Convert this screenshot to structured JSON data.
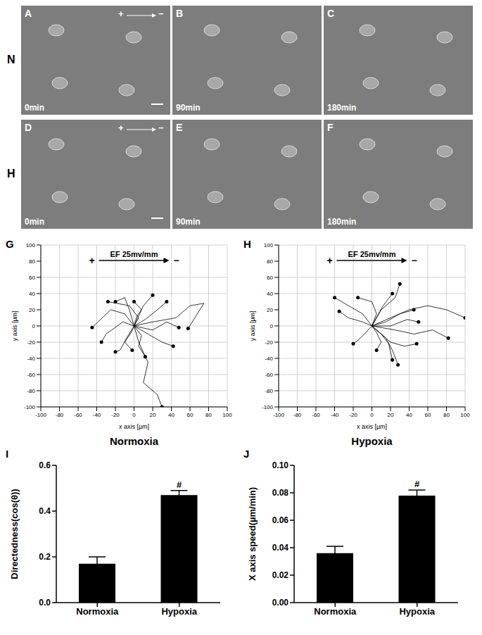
{
  "image_panels": {
    "field_plus": "+",
    "field_minus": "−",
    "rows": [
      {
        "label": "N",
        "panels": [
          {
            "label": "A",
            "time": "0min",
            "field": true
          },
          {
            "label": "B",
            "time": "90min",
            "field": false
          },
          {
            "label": "C",
            "time": "180min",
            "field": false
          }
        ]
      },
      {
        "label": "H",
        "panels": [
          {
            "label": "D",
            "time": "0min",
            "field": true
          },
          {
            "label": "E",
            "time": "90min",
            "field": false
          },
          {
            "label": "F",
            "time": "180min",
            "field": false
          }
        ]
      }
    ]
  },
  "chart_data": [
    {
      "type": "line",
      "panel_label": "G",
      "title": "Normoxia",
      "x_label": "x axis [µm]",
      "y_label": "y axis [µm]",
      "annotation": "EF 25mv/mm",
      "field_plus": "+",
      "field_minus": "−",
      "xlim": [
        -100,
        100
      ],
      "ylim": [
        -100,
        100
      ],
      "xticks": [
        -100,
        -80,
        -60,
        -40,
        -20,
        0,
        20,
        40,
        60,
        80,
        100
      ],
      "yticks": [
        -100,
        -80,
        -60,
        -40,
        -20,
        0,
        20,
        40,
        60,
        80,
        100
      ],
      "grid": true,
      "marker": "circle",
      "color": "#000000",
      "series": [
        {
          "x": [
            0,
            5,
            15,
            10,
            25,
            30
          ],
          "values": [
            0,
            -20,
            -45,
            -70,
            -85,
            -100
          ]
        },
        {
          "x": [
            0,
            20,
            45,
            60,
            75,
            58
          ],
          "values": [
            0,
            5,
            10,
            25,
            28,
            -3
          ]
        },
        {
          "x": [
            0,
            -10,
            -25,
            -45
          ],
          "values": [
            0,
            15,
            20,
            -2
          ]
        },
        {
          "x": [
            0,
            -5,
            -10,
            -20
          ],
          "values": [
            0,
            20,
            35,
            30
          ]
        },
        {
          "x": [
            0,
            10,
            20
          ],
          "values": [
            0,
            25,
            38
          ]
        },
        {
          "x": [
            0,
            15,
            30,
            42
          ],
          "values": [
            0,
            -10,
            -20,
            -25
          ]
        },
        {
          "x": [
            0,
            -8,
            -15,
            -20
          ],
          "values": [
            0,
            -15,
            -30,
            -32
          ]
        },
        {
          "x": [
            0,
            5,
            -5,
            -28
          ],
          "values": [
            0,
            10,
            25,
            30
          ]
        },
        {
          "x": [
            0,
            20,
            35,
            48
          ],
          "values": [
            0,
            -5,
            5,
            -2
          ]
        },
        {
          "x": [
            0,
            -12,
            -30,
            -35
          ],
          "values": [
            0,
            5,
            -10,
            -20
          ]
        },
        {
          "x": [
            0,
            8,
            5,
            12
          ],
          "values": [
            0,
            -12,
            -25,
            -38
          ]
        },
        {
          "x": [
            0,
            12,
            25,
            35
          ],
          "values": [
            0,
            8,
            20,
            30
          ]
        },
        {
          "x": [
            0,
            -3,
            -10,
            -2
          ],
          "values": [
            0,
            -8,
            -20,
            -30
          ]
        },
        {
          "x": [
            0,
            3,
            8,
            0
          ],
          "values": [
            0,
            12,
            20,
            30
          ]
        }
      ]
    },
    {
      "type": "line",
      "panel_label": "H",
      "title": "Hypoxia",
      "x_label": "x axis [µm]",
      "y_label": "y axis [µm]",
      "annotation": "EF 25mv/mm",
      "field_plus": "+",
      "field_minus": "−",
      "xlim": [
        -100,
        100
      ],
      "ylim": [
        -100,
        100
      ],
      "xticks": [
        -100,
        -80,
        -60,
        -40,
        -20,
        0,
        20,
        40,
        60,
        80,
        100
      ],
      "yticks": [
        -100,
        -80,
        -60,
        -40,
        -20,
        0,
        20,
        40,
        60,
        80,
        100
      ],
      "grid": true,
      "marker": "circle",
      "color": "#000000",
      "series": [
        {
          "x": [
            0,
            20,
            40,
            60,
            80,
            100
          ],
          "values": [
            0,
            10,
            20,
            25,
            20,
            10
          ]
        },
        {
          "x": [
            0,
            -10,
            -25,
            -40
          ],
          "values": [
            0,
            15,
            25,
            35
          ]
        },
        {
          "x": [
            0,
            10,
            25,
            30
          ],
          "values": [
            0,
            20,
            35,
            52
          ]
        },
        {
          "x": [
            0,
            15,
            22,
            28
          ],
          "values": [
            0,
            -15,
            -30,
            -48
          ]
        },
        {
          "x": [
            0,
            25,
            45,
            65,
            82
          ],
          "values": [
            0,
            -5,
            -10,
            -5,
            -15
          ]
        },
        {
          "x": [
            0,
            20,
            35,
            48
          ],
          "values": [
            0,
            -20,
            -25,
            -22
          ]
        },
        {
          "x": [
            0,
            5,
            0,
            -15
          ],
          "values": [
            0,
            15,
            30,
            35
          ]
        },
        {
          "x": [
            0,
            15,
            30,
            45
          ],
          "values": [
            0,
            5,
            15,
            20
          ]
        },
        {
          "x": [
            0,
            -8,
            -15,
            -20
          ],
          "values": [
            0,
            -10,
            -18,
            -22
          ]
        },
        {
          "x": [
            0,
            10,
            18,
            22
          ],
          "values": [
            0,
            -10,
            -22,
            -42
          ]
        },
        {
          "x": [
            0,
            12,
            22
          ],
          "values": [
            0,
            25,
            40
          ]
        },
        {
          "x": [
            0,
            20,
            38,
            50
          ],
          "values": [
            0,
            0,
            8,
            5
          ]
        },
        {
          "x": [
            0,
            5,
            10,
            5
          ],
          "values": [
            0,
            -8,
            -20,
            -30
          ]
        },
        {
          "x": [
            0,
            -10,
            -25,
            -35
          ],
          "values": [
            0,
            5,
            10,
            18
          ]
        }
      ]
    },
    {
      "type": "bar",
      "panel_label": "I",
      "y_label": "Directedness(cos(θ))",
      "categories": [
        "Normoxia",
        "Hypoxia"
      ],
      "values": [
        0.17,
        0.47
      ],
      "errors": [
        0.03,
        0.02
      ],
      "color": "#000000",
      "ylim": [
        0,
        0.6
      ],
      "yticks": [
        {
          "value": 0,
          "label": "0.0"
        },
        0.2,
        0.4,
        0.6
      ],
      "annotations": [
        {
          "category": "Hypoxia",
          "text": "#"
        }
      ]
    },
    {
      "type": "bar",
      "panel_label": "J",
      "y_label": "X axis speed(µm/min)",
      "categories": [
        "Normoxia",
        "Hypoxia"
      ],
      "values": [
        0.036,
        0.078
      ],
      "errors": [
        0.005,
        0.004
      ],
      "color": "#000000",
      "ylim": [
        0,
        0.1
      ],
      "yticks": [
        {
          "value": 0,
          "label": "0.00"
        },
        {
          "value": 0.02,
          "label": "0.02"
        },
        {
          "value": 0.04,
          "label": "0.04"
        },
        {
          "value": 0.06,
          "label": "0.06"
        },
        {
          "value": 0.08,
          "label": "0.08"
        },
        {
          "value": 0.1,
          "label": "0.10"
        }
      ],
      "annotations": [
        {
          "category": "Hypoxia",
          "text": "#"
        }
      ]
    }
  ]
}
